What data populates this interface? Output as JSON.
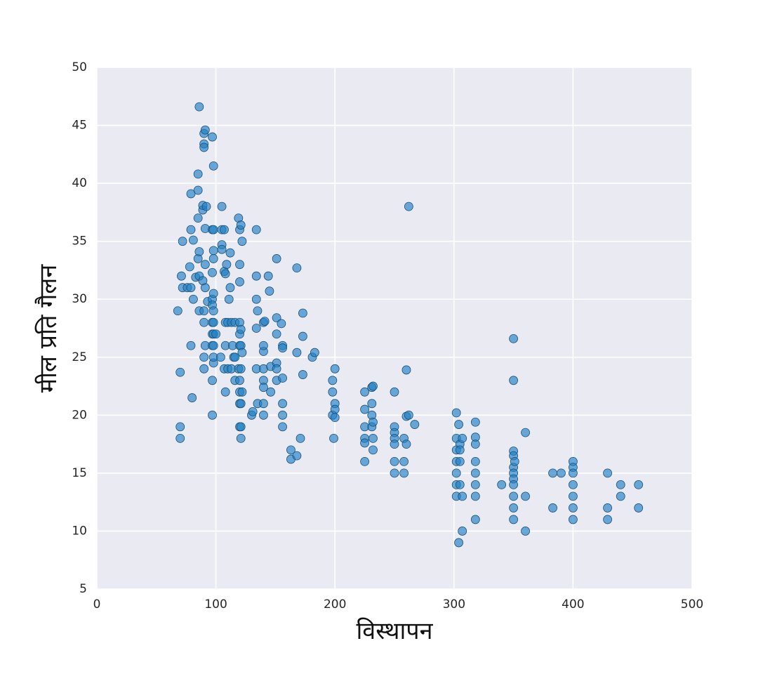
{
  "chart_data": {
    "type": "scatter",
    "x_label": "विस्थापन",
    "y_label": "मील प्रति गैलन",
    "xlim": [
      0,
      500
    ],
    "ylim": [
      5,
      50
    ],
    "xticks": [
      0,
      100,
      200,
      300,
      400,
      500
    ],
    "yticks": [
      5,
      10,
      15,
      20,
      25,
      30,
      35,
      40,
      45,
      50
    ],
    "grid": true,
    "color": "#1f7fc4",
    "x": [
      68,
      70,
      70,
      70,
      72,
      71,
      72,
      76,
      78,
      79,
      79,
      79,
      79,
      80,
      81,
      81,
      83,
      85,
      85,
      85,
      86,
      85,
      86,
      86,
      86,
      89,
      89,
      90,
      90,
      91,
      90,
      90,
      90,
      90,
      91,
      91,
      91,
      91,
      92,
      93,
      89,
      90,
      97,
      97,
      97,
      97,
      97,
      97,
      97,
      97,
      97,
      97,
      98,
      98,
      98,
      98,
      98,
      98,
      98,
      98,
      98,
      98,
      98,
      100,
      104,
      105,
      105,
      105,
      105,
      107,
      107,
      107,
      108,
      108,
      108,
      108,
      109,
      110,
      110,
      111,
      112,
      112,
      113,
      113,
      114,
      115,
      116,
      116,
      116,
      119,
      119,
      120,
      120,
      120,
      120,
      120,
      120,
      120,
      120,
      120,
      120,
      121,
      121,
      121,
      121,
      121,
      121,
      121,
      122,
      122,
      122,
      130,
      131,
      134,
      134,
      134,
      134,
      134,
      135,
      135,
      140,
      140,
      140,
      140,
      140,
      140,
      140,
      140,
      141,
      144,
      145,
      146,
      146,
      151,
      151,
      151,
      151,
      151,
      151,
      155,
      156,
      156,
      156,
      156,
      156,
      156,
      163,
      163,
      168,
      168,
      168,
      171,
      173,
      173,
      173,
      181,
      183,
      198,
      198,
      198,
      199,
      200,
      200,
      200,
      200,
      225,
      225,
      225,
      225,
      225,
      225,
      231,
      231,
      231,
      231,
      232,
      232,
      232,
      232,
      250,
      250,
      250,
      250,
      250,
      250,
      250,
      258,
      258,
      258,
      260,
      260,
      262,
      260,
      262,
      267,
      302,
      302,
      302,
      302,
      302,
      302,
      302,
      304,
      304,
      305,
      305,
      305,
      305,
      307,
      307,
      307,
      318,
      318,
      318,
      318,
      318,
      318,
      318,
      318,
      340,
      350,
      350,
      350,
      350,
      350,
      350,
      350,
      350,
      350,
      350,
      350,
      351,
      360,
      360,
      360,
      383,
      383,
      390,
      400,
      400,
      400,
      400,
      400,
      400,
      400,
      429,
      429,
      429,
      440,
      440,
      455,
      455
    ],
    "values": [
      29,
      23.7,
      19,
      18,
      35,
      32,
      31,
      31,
      32.8,
      31,
      36,
      39.1,
      26,
      21.5,
      30,
      35.1,
      31.9,
      39.4,
      40.8,
      37,
      46.6,
      33.5,
      34.1,
      29,
      32,
      37.7,
      38.1,
      44.3,
      43.4,
      44.6,
      43.1,
      29,
      24,
      28,
      36.1,
      31,
      33,
      26,
      38,
      29.8,
      31.6,
      25,
      44,
      27,
      26,
      28,
      23,
      20,
      36,
      32.3,
      30,
      29.5,
      41.5,
      34.2,
      33.5,
      36,
      30.5,
      29,
      28,
      26,
      24.5,
      27,
      25,
      27,
      25,
      38,
      36,
      34.7,
      34.3,
      36,
      32.4,
      24,
      32.2,
      28,
      26,
      22,
      33,
      28,
      24,
      30,
      31,
      34,
      28,
      24,
      26,
      25,
      23,
      28,
      25,
      24,
      37,
      36,
      33,
      31.5,
      28,
      27,
      26,
      23,
      22,
      21,
      19,
      36.4,
      27.4,
      26,
      24,
      21,
      19,
      18,
      35,
      25.4,
      22,
      20,
      20.3,
      36,
      32,
      30,
      27.5,
      24,
      21,
      29,
      25.5,
      28,
      26,
      24,
      23,
      22.4,
      21,
      20,
      28.1,
      32,
      30.7,
      24.2,
      22,
      33.5,
      28.4,
      27,
      24.5,
      24,
      23,
      27.9,
      26,
      25.8,
      23.2,
      21,
      20,
      19,
      17,
      16.2,
      32.7,
      25.4,
      16.5,
      18,
      28.8,
      26.8,
      23.5,
      25,
      25.4,
      23,
      22,
      20,
      18,
      24,
      21,
      20.5,
      19.8,
      22,
      20.5,
      19,
      18,
      17.6,
      16,
      22.4,
      21,
      20,
      19,
      22.5,
      18,
      17,
      19.4,
      22,
      19,
      18.5,
      18,
      17.5,
      16,
      15,
      18,
      16,
      15,
      23.9,
      17.5,
      38,
      19.9,
      20,
      19.2,
      20.2,
      18,
      17,
      16,
      15,
      14,
      13,
      9,
      19.2,
      17.5,
      17,
      16,
      14,
      10,
      13,
      18,
      19.4,
      18.1,
      17.5,
      16,
      15,
      14,
      13,
      11,
      14,
      26.6,
      23,
      16.9,
      16.5,
      15.5,
      15,
      14.5,
      14,
      13,
      12,
      11,
      16,
      18.5,
      13,
      10,
      15,
      12,
      15,
      16,
      15.5,
      15,
      14,
      13,
      12,
      11,
      15,
      12,
      11,
      14,
      13,
      14,
      12
    ]
  }
}
